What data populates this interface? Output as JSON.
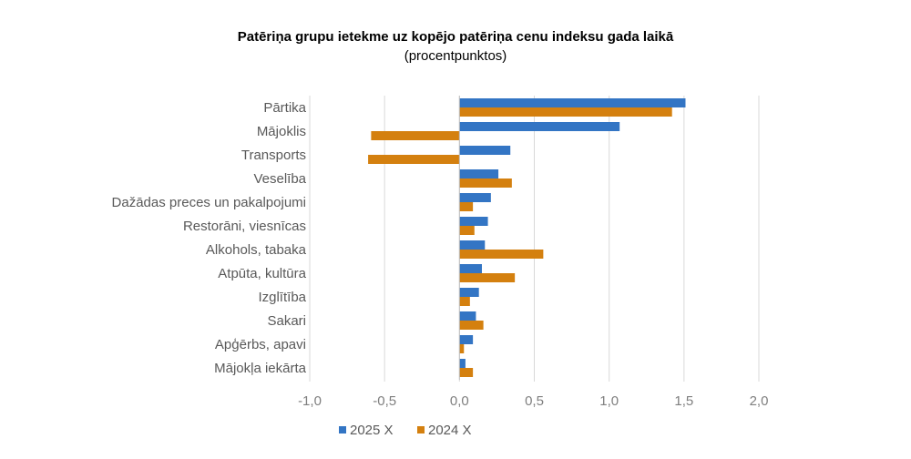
{
  "chart_data": {
    "type": "bar",
    "orientation": "horizontal",
    "title": "Patēriņa grupu ietekme uz kopējo patēriņa cenu indeksu gada laikā",
    "subtitle": "(procentpunktos)",
    "categories": [
      "Pārtika",
      "Mājoklis",
      "Transports",
      "Veselība",
      "Dažādas preces un pakalpojumi",
      "Restorāni, viesnīcas",
      "Alkohols, tabaka",
      "Atpūta, kultūra",
      "Izglītība",
      "Sakari",
      "Apģērbs, apavi",
      "Mājokļa iekārta"
    ],
    "series": [
      {
        "name": "2025 X",
        "color": "#3375c4",
        "values": [
          1.51,
          1.07,
          0.34,
          0.26,
          0.21,
          0.19,
          0.17,
          0.15,
          0.13,
          0.11,
          0.09,
          0.04
        ]
      },
      {
        "name": "2024 X",
        "color": "#d4800f",
        "values": [
          1.42,
          -0.59,
          -0.61,
          0.35,
          0.09,
          0.1,
          0.56,
          0.37,
          0.07,
          0.16,
          0.03,
          0.09
        ]
      }
    ],
    "xlim": [
      -1.0,
      2.0
    ],
    "xticks": [
      "-1,0",
      "-0,5",
      "0,0",
      "0,5",
      "1,0",
      "1,5",
      "2,0"
    ],
    "grid": true,
    "legend": "bottom"
  }
}
